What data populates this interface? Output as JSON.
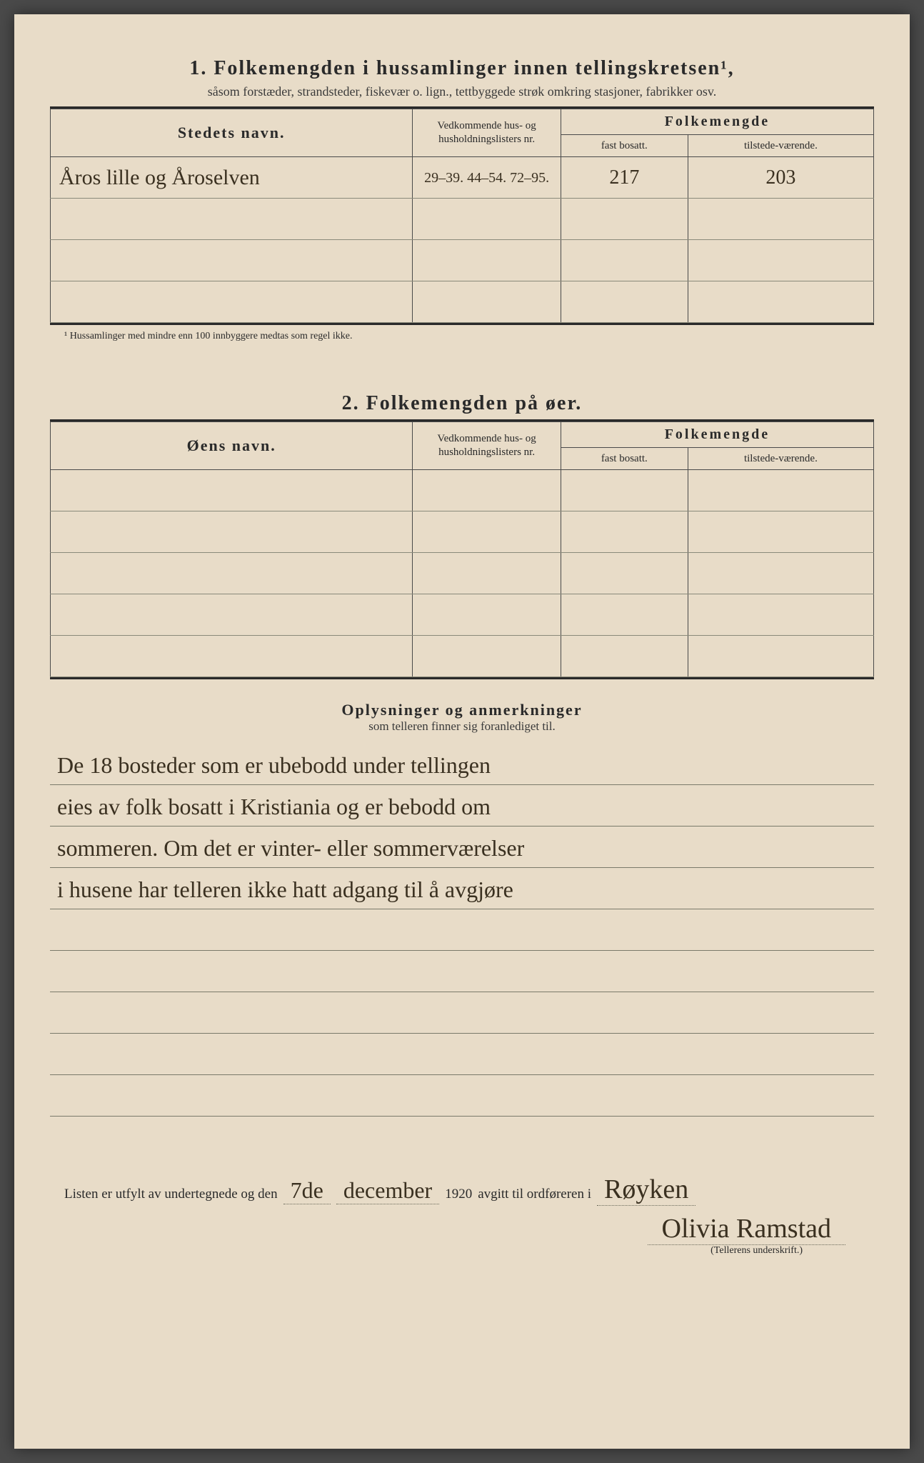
{
  "section1": {
    "title": "1.  Folkemengden i hussamlinger innen tellingskretsen¹,",
    "subtitle": "såsom forstæder, strandsteder, fiskevær o. lign., tettbyggede strøk omkring stasjoner, fabrikker osv.",
    "headers": {
      "name": "Stedets navn.",
      "ref": "Vedkommende hus- og husholdningslisters nr.",
      "folk": "Folkemengde",
      "fast": "fast bosatt.",
      "tilstede": "tilstede-værende."
    },
    "rows": [
      {
        "name": "Åros lille og Åroselven",
        "ref": "29–39. 44–54. 72–95.",
        "fast": "217",
        "tilstede": "203"
      },
      {
        "name": "",
        "ref": "",
        "fast": "",
        "tilstede": ""
      },
      {
        "name": "",
        "ref": "",
        "fast": "",
        "tilstede": ""
      },
      {
        "name": "",
        "ref": "",
        "fast": "",
        "tilstede": ""
      }
    ],
    "footnote": "¹ Hussamlinger med mindre enn 100 innbyggere medtas som regel ikke."
  },
  "section2": {
    "title": "2.  Folkemengden på øer.",
    "headers": {
      "name": "Øens navn.",
      "ref": "Vedkommende hus- og husholdningslisters nr.",
      "folk": "Folkemengde",
      "fast": "fast bosatt.",
      "tilstede": "tilstede-værende."
    },
    "rows": [
      {
        "name": "",
        "ref": "",
        "fast": "",
        "tilstede": ""
      },
      {
        "name": "",
        "ref": "",
        "fast": "",
        "tilstede": ""
      },
      {
        "name": "",
        "ref": "",
        "fast": "",
        "tilstede": ""
      },
      {
        "name": "",
        "ref": "",
        "fast": "",
        "tilstede": ""
      },
      {
        "name": "",
        "ref": "",
        "fast": "",
        "tilstede": ""
      }
    ]
  },
  "remarks": {
    "title": "Oplysninger og anmerkninger",
    "subtitle": "som telleren finner sig foranlediget til.",
    "lines": [
      "De 18 bosteder som er ubebodd under tellingen",
      "eies av folk bosatt i Kristiania og er bebodd om",
      "sommeren. Om det er vinter- eller sommerværelser",
      "i husene har telleren ikke hatt adgang til å avgjøre",
      "",
      "",
      "",
      "",
      ""
    ]
  },
  "closing": {
    "prefix": "Listen er utfylt av undertegnede og den",
    "day": "7de",
    "month": "december",
    "year": "1920",
    "mid": "avgitt til ordføreren i",
    "place": "Røyken",
    "signature": "Olivia Ramstad",
    "sig_label": "(Tellerens underskrift.)"
  }
}
